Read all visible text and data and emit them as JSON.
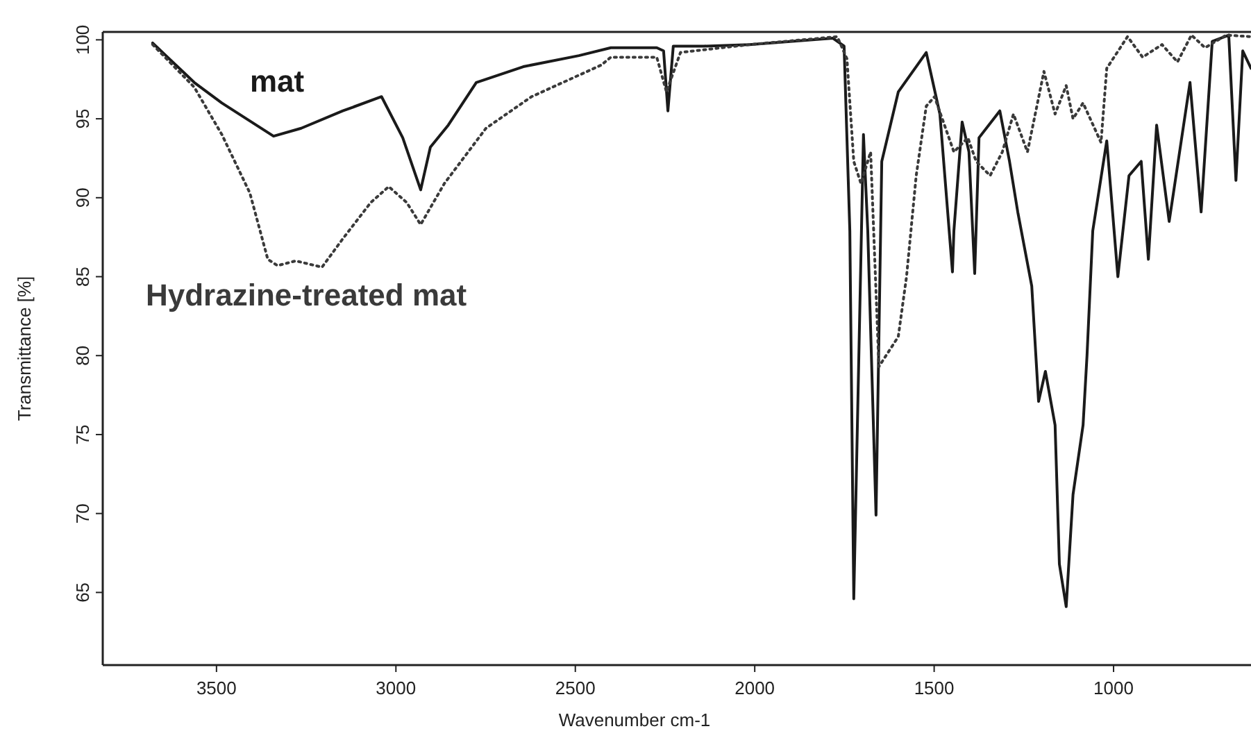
{
  "chart_data": {
    "type": "line",
    "xlabel": "Wavenumber cm-1",
    "ylabel": "Transmittance [%]",
    "xlim": [
      3817,
      617
    ],
    "ylim": [
      60.4,
      100.5
    ],
    "xticks": [
      3500,
      3000,
      2500,
      2000,
      1500,
      1000
    ],
    "yticks": [
      65,
      70,
      75,
      80,
      85,
      90,
      95,
      100
    ],
    "grid": false,
    "series": [
      {
        "name": "mat",
        "color": "#1a1a1a",
        "line_style": "solid",
        "x": [
          3678,
          3562,
          3485,
          3341,
          3264,
          3148,
          3040,
          2981,
          2931,
          2904,
          2854,
          2776,
          2645,
          2490,
          2401,
          2324,
          2273,
          2254,
          2242,
          2227,
          2142,
          2014,
          1782,
          1751,
          1735,
          1724,
          1697,
          1685,
          1662,
          1646,
          1600,
          1522,
          1484,
          1449,
          1445,
          1422,
          1403,
          1387,
          1375,
          1317,
          1290,
          1267,
          1228,
          1209,
          1190,
          1163,
          1151,
          1132,
          1113,
          1085,
          1074,
          1058,
          1019,
          988,
          957,
          923,
          903,
          880,
          845,
          787,
          756,
          725,
          679,
          659,
          640,
          617
        ],
        "values": [
          99.8,
          97.3,
          96.0,
          93.9,
          94.4,
          95.5,
          96.4,
          93.8,
          90.5,
          93.2,
          94.6,
          97.3,
          98.3,
          99.0,
          99.5,
          99.5,
          99.5,
          99.3,
          95.5,
          99.6,
          99.6,
          99.7,
          100.1,
          99.6,
          87.9,
          64.6,
          94.0,
          87.9,
          69.9,
          92.3,
          96.7,
          99.2,
          95.3,
          85.3,
          87.9,
          94.8,
          92.9,
          85.2,
          93.8,
          95.5,
          92.3,
          89.1,
          84.4,
          77.1,
          79.0,
          75.6,
          66.8,
          64.1,
          71.2,
          75.6,
          80.0,
          87.9,
          93.6,
          85.0,
          91.4,
          92.3,
          86.1,
          94.6,
          88.5,
          97.3,
          89.1,
          99.9,
          100.3,
          91.1,
          99.3,
          98.2
        ]
      },
      {
        "name": "Hydrazine-treated mat",
        "color": "#3a3a3a",
        "line_style": "dotted",
        "x": [
          3678,
          3562,
          3485,
          3407,
          3357,
          3330,
          3279,
          3206,
          3148,
          3070,
          3020,
          2970,
          2931,
          2865,
          2749,
          2622,
          2428,
          2401,
          2273,
          2246,
          2207,
          2014,
          1770,
          1743,
          1724,
          1704,
          1677,
          1654,
          1600,
          1577,
          1550,
          1522,
          1499,
          1445,
          1406,
          1383,
          1344,
          1310,
          1279,
          1240,
          1221,
          1194,
          1163,
          1132,
          1113,
          1085,
          1035,
          1019,
          961,
          919,
          865,
          822,
          783,
          745,
          686,
          617
        ],
        "values": [
          99.7,
          97.0,
          94.0,
          90.3,
          86.1,
          85.7,
          86.0,
          85.6,
          87.4,
          89.7,
          90.7,
          89.7,
          88.3,
          90.9,
          94.4,
          96.4,
          98.4,
          98.9,
          98.9,
          96.7,
          99.2,
          99.7,
          100.2,
          98.8,
          92.3,
          90.9,
          92.9,
          79.3,
          81.2,
          85.0,
          91.4,
          95.8,
          96.4,
          92.9,
          93.8,
          92.3,
          91.4,
          92.9,
          95.3,
          92.9,
          95.0,
          98.0,
          95.3,
          97.1,
          95.0,
          96.0,
          93.5,
          98.2,
          100.2,
          98.9,
          99.7,
          98.6,
          100.3,
          99.5,
          100.3,
          100.2
        ]
      }
    ]
  }
}
